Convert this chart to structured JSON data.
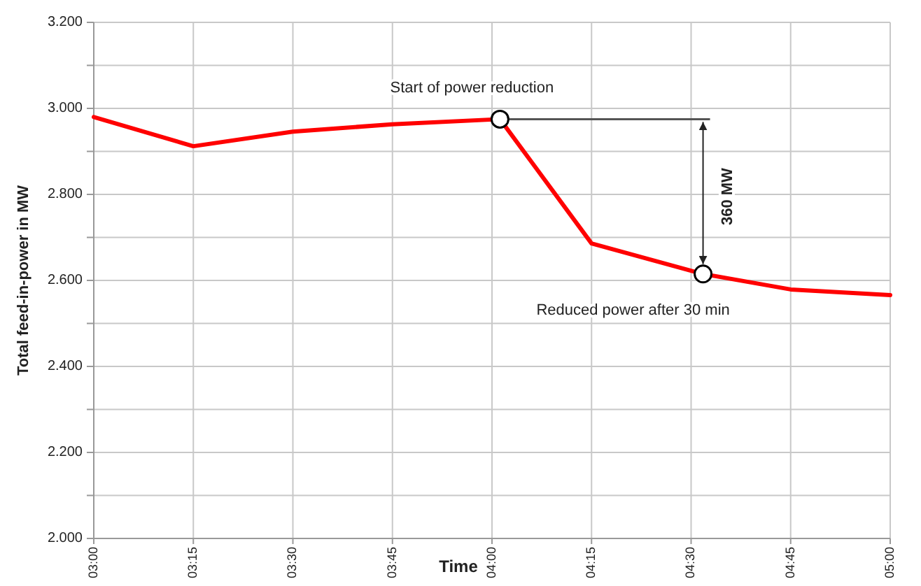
{
  "chart_data": {
    "type": "line",
    "xlabel": "Time",
    "ylabel": "Total  feed-in-power  in MW",
    "xlim": [
      3,
      5
    ],
    "xticks": [
      {
        "value": 3,
        "label": "03:00"
      },
      {
        "value": 3.25,
        "label": "03:15"
      },
      {
        "value": 3.5,
        "label": "03:30"
      },
      {
        "value": 3.75,
        "label": "03:45"
      },
      {
        "value": 4,
        "label": "04:00"
      },
      {
        "value": 4.25,
        "label": "04:15"
      },
      {
        "value": 4.5,
        "label": "04:30"
      },
      {
        "value": 4.75,
        "label": "04:45"
      },
      {
        "value": 5,
        "label": "05:00"
      }
    ],
    "ylim": [
      2000,
      3200
    ],
    "yticks": [
      {
        "value": 2000,
        "label": "2.000"
      },
      {
        "value": 2100,
        "label": null
      },
      {
        "value": 2200,
        "label": "2.200"
      },
      {
        "value": 2300,
        "label": null
      },
      {
        "value": 2400,
        "label": "2.400"
      },
      {
        "value": 2500,
        "label": null
      },
      {
        "value": 2600,
        "label": "2.600"
      },
      {
        "value": 2700,
        "label": null
      },
      {
        "value": 2800,
        "label": "2.800"
      },
      {
        "value": 2900,
        "label": null
      },
      {
        "value": 3000,
        "label": "3.000"
      },
      {
        "value": 3100,
        "label": null
      },
      {
        "value": 3200,
        "label": "3.200"
      }
    ],
    "grid": true,
    "series": [
      {
        "type": "line",
        "color": "#ff0000",
        "marker": "none",
        "x": [
          3,
          3.25,
          3.5,
          3.75,
          4.02,
          4.25,
          4.53,
          4.75,
          5
        ],
        "values": [
          2980,
          2912,
          2946,
          2963,
          2975,
          2686,
          2615,
          2579,
          2566
        ]
      },
      {
        "type": "scatter",
        "color": "#000000",
        "marker": "circle",
        "x": [
          4.02,
          4.53
        ],
        "values": [
          2975,
          2615
        ]
      }
    ],
    "annotations": [
      {
        "text": "Start of power reduction",
        "x": 4.02,
        "y": 2975
      },
      {
        "text": "Reduced power after 30 min",
        "x": 4.53,
        "y": 2615
      },
      "360 MW"
    ]
  }
}
